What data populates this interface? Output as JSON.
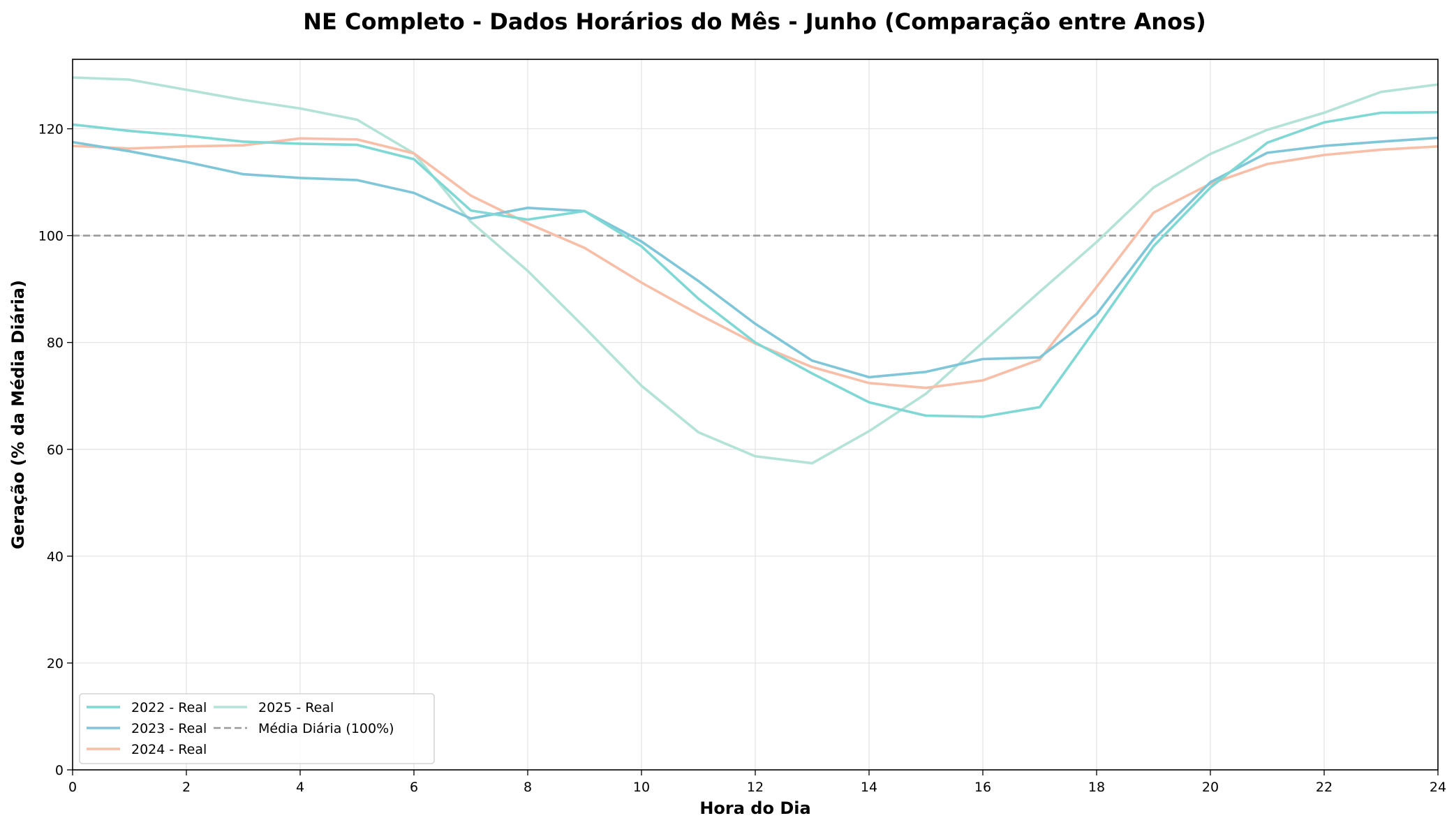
{
  "chart_data": {
    "type": "line",
    "title": "NE Completo - Dados Horários do Mês - Junho (Comparação entre Anos)",
    "xlabel": "Hora do Dia",
    "ylabel": "Geração (% da Média Diária)",
    "xlim": [
      0,
      24
    ],
    "ylim": [
      0,
      133
    ],
    "xticks": [
      0,
      2,
      4,
      6,
      8,
      10,
      12,
      14,
      16,
      18,
      20,
      22,
      24
    ],
    "yticks": [
      0,
      20,
      40,
      60,
      80,
      100,
      120
    ],
    "grid": true,
    "legend_position": "bottom-left",
    "x": [
      0,
      1,
      2,
      3,
      4,
      5,
      6,
      7,
      8,
      9,
      10,
      11,
      12,
      13,
      14,
      15,
      16,
      17,
      18,
      19,
      20,
      21,
      22,
      23,
      24
    ],
    "series": [
      {
        "name": "2022 - Real",
        "color": "#7fd8d4",
        "values": [
          120.8,
          119.6,
          118.7,
          117.6,
          117.2,
          117.0,
          114.3,
          104.7,
          103.0,
          104.6,
          98.0,
          88.2,
          80.0,
          74.2,
          68.8,
          66.3,
          66.1,
          67.9,
          82.8,
          98.0,
          109.0,
          117.4,
          121.2,
          123.0,
          123.1
        ]
      },
      {
        "name": "2023 - Real",
        "color": "#7ec6d8",
        "values": [
          117.5,
          115.8,
          113.8,
          111.5,
          110.8,
          110.4,
          108.0,
          103.2,
          105.2,
          104.6,
          98.9,
          91.5,
          83.5,
          76.6,
          73.5,
          74.5,
          76.9,
          77.2,
          85.3,
          99.3,
          110.0,
          115.5,
          116.8,
          117.6,
          118.3
        ]
      },
      {
        "name": "2024 - Real",
        "color": "#f8bea8",
        "values": [
          116.8,
          116.3,
          116.7,
          116.9,
          118.2,
          118.0,
          115.4,
          107.5,
          102.3,
          97.7,
          91.2,
          85.3,
          79.8,
          75.4,
          72.4,
          71.5,
          72.9,
          76.8,
          90.4,
          104.3,
          109.7,
          113.4,
          115.1,
          116.1,
          116.7
        ]
      },
      {
        "name": "2025 - Real",
        "color": "#b3e2d7",
        "values": [
          129.6,
          129.2,
          127.3,
          125.4,
          123.8,
          121.7,
          115.4,
          102.6,
          93.4,
          82.8,
          71.9,
          63.2,
          58.7,
          57.4,
          63.4,
          70.4,
          80.0,
          89.5,
          98.8,
          109.0,
          115.3,
          119.8,
          123.0,
          126.9,
          128.3
        ]
      }
    ],
    "reference_line": {
      "name": "Média Diária (100%)",
      "y": 100,
      "color": "#999999",
      "style": "dashed"
    }
  }
}
